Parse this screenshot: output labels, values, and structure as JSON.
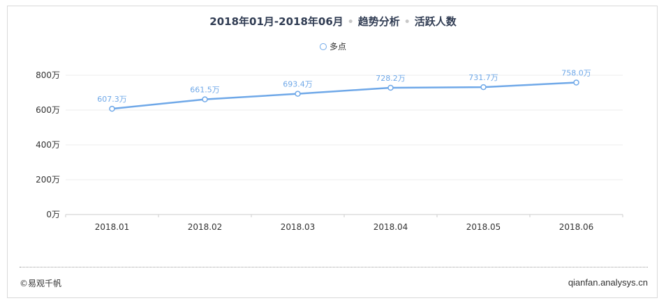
{
  "header": {
    "period": "2018年01月-2018年06月",
    "sep1": "•",
    "analysis": "趋势分析",
    "sep2": "•",
    "metric": "活跃人数"
  },
  "footer": {
    "copyright": "©易观千帆",
    "site": "qianfan.analysys.cn"
  },
  "colors": {
    "series": "#6fa8e8",
    "grid": "#eeeeee",
    "axis": "#cccccc"
  },
  "chart_data": {
    "type": "line",
    "categories": [
      "2018.01",
      "2018.02",
      "2018.03",
      "2018.04",
      "2018.05",
      "2018.06"
    ],
    "series": [
      {
        "name": "多点",
        "values": [
          607.3,
          661.5,
          693.4,
          728.2,
          731.7,
          758.0
        ],
        "labels": [
          "607.3万",
          "661.5万",
          "693.4万",
          "728.2万",
          "731.7万",
          "758.0万"
        ]
      }
    ],
    "yticks": [
      "0万",
      "200万",
      "400万",
      "600万",
      "800万"
    ],
    "ylim": [
      0,
      800
    ],
    "grid": true,
    "legend": "top-center"
  }
}
